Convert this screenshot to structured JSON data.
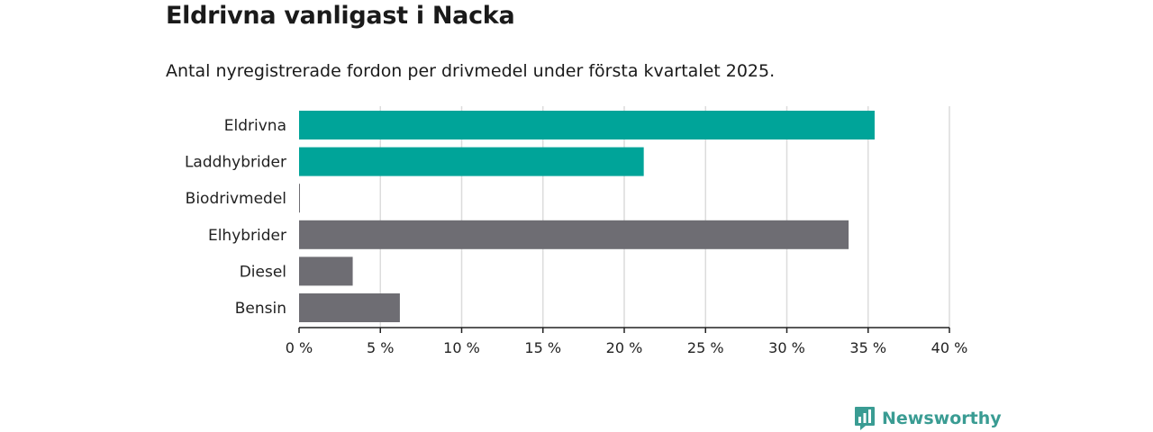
{
  "chart_data": {
    "type": "bar",
    "orientation": "horizontal",
    "title": "Eldrivna vanligast i Nacka",
    "subtitle": "Antal nyregistrerade fordon per drivmedel under första kvartalet 2025.",
    "categories": [
      "Eldrivna",
      "Laddhybrider",
      "Biodrivmedel",
      "Elhybrider",
      "Diesel",
      "Bensin"
    ],
    "values": [
      35.4,
      21.2,
      0.05,
      33.8,
      3.3,
      6.2
    ],
    "colors": [
      "#00a499",
      "#00a499",
      "#6e6d73",
      "#6e6d73",
      "#6e6d73",
      "#6e6d73"
    ],
    "xlim": [
      0,
      40
    ],
    "xticks": [
      0,
      5,
      10,
      15,
      20,
      25,
      30,
      35,
      40
    ],
    "xtick_labels": [
      "0 %",
      "5 %",
      "10 %",
      "15 %",
      "20 %",
      "25 %",
      "30 %",
      "35 %",
      "40 %"
    ],
    "grid": true
  },
  "branding": {
    "name": "Newsworthy",
    "color": "#3a9c93",
    "icon": "newsworthy-chart-icon"
  }
}
